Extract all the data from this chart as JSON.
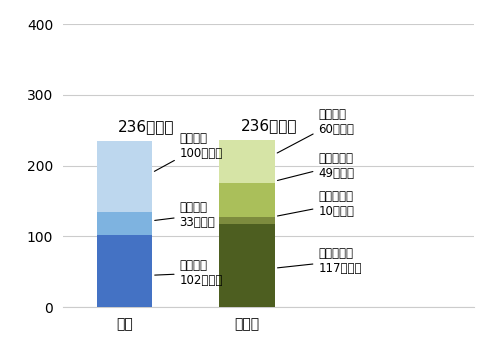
{
  "categories": [
    "家庭",
    "事業者"
  ],
  "home_segments": [
    {
      "name": "直接廃棄",
      "value": 102,
      "color": "#4472C4"
    },
    {
      "name": "過剰除去",
      "value": 33,
      "color": "#7EB3E0"
    },
    {
      "name": "食べ残し",
      "value": 100,
      "color": "#BDD7EE"
    }
  ],
  "business_segments": [
    {
      "name": "食品製造業",
      "value": 117,
      "color": "#4D5E20"
    },
    {
      "name": "食品卸売業",
      "value": 10,
      "color": "#7D8B3E"
    },
    {
      "name": "食品小売業",
      "value": 49,
      "color": "#AABF5A"
    },
    {
      "name": "外食産業",
      "value": 60,
      "color": "#D6E4A6"
    }
  ],
  "home_total_label": "236万トン",
  "business_total_label": "236万トン",
  "ylim": [
    0,
    400
  ],
  "yticks": [
    0,
    100,
    200,
    300,
    400
  ],
  "bar_width": 0.45,
  "background_color": "#FFFFFF",
  "grid_color": "#CCCCCC",
  "font_size_annotation": 8.5,
  "font_size_tick": 10,
  "font_size_total": 11
}
